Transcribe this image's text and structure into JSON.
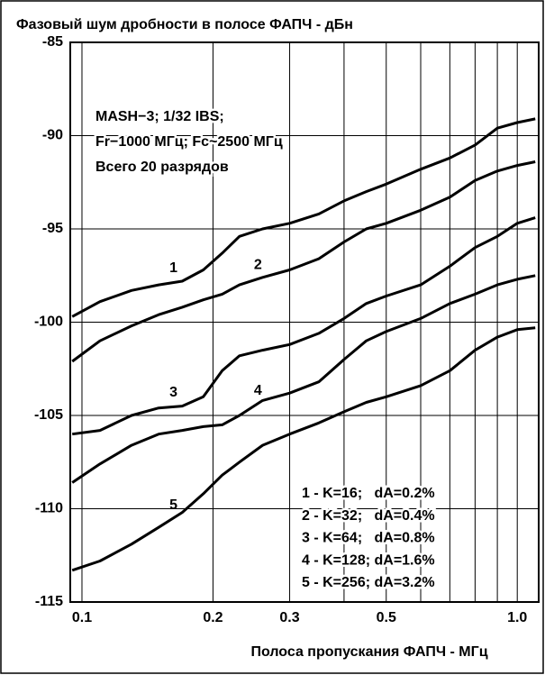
{
  "chart_data": {
    "type": "line",
    "title": "Фазовый шум дробности в полосе ФАПЧ - дБн",
    "x_label": "Полоса пропускания ФАПЧ - МГц",
    "x_log": true,
    "xlim": [
      0.094,
      1.12
    ],
    "ylim": [
      -115,
      -85
    ],
    "xticks": [
      0.1,
      0.2,
      0.3,
      0.5,
      {
        "value": 1,
        "label": "1.0"
      }
    ],
    "xgrid": [
      0.4,
      0.6,
      0.7,
      0.8,
      0.9
    ],
    "yticks": [
      -85,
      -90,
      -95,
      -100,
      -105,
      -110,
      -115
    ],
    "grid": true,
    "annotations": [
      "MASH−3; 1/32 IBS;",
      "Fr−1000 МГц; Fc~2500 МГц",
      "Всего 20 разрядов"
    ],
    "x": [
      0.095,
      0.11,
      0.13,
      0.15,
      0.17,
      0.19,
      0.21,
      0.23,
      0.26,
      0.3,
      0.35,
      0.4,
      0.45,
      0.5,
      0.6,
      0.7,
      0.8,
      0.9,
      1.0,
      1.1
    ],
    "series": [
      {
        "name": "1",
        "description": "1 - K=16;   dA=0.2%",
        "color": "#000000",
        "label_at": 0.16,
        "values": [
          -99.7,
          -98.9,
          -98.3,
          -98.0,
          -97.8,
          -97.2,
          -96.3,
          -95.4,
          -95.0,
          -94.7,
          -94.2,
          -93.5,
          -93.0,
          -92.6,
          -91.8,
          -91.2,
          -90.5,
          -89.6,
          -89.3,
          -89.1
        ]
      },
      {
        "name": "2",
        "description": "2 - K=32;   dA=0.4%",
        "color": "#000000",
        "label_at": 0.25,
        "values": [
          -102.1,
          -101.0,
          -100.2,
          -99.6,
          -99.2,
          -98.8,
          -98.5,
          -98.0,
          -97.6,
          -97.2,
          -96.6,
          -95.7,
          -95.0,
          -94.7,
          -94.0,
          -93.3,
          -92.4,
          -91.9,
          -91.6,
          -91.4
        ]
      },
      {
        "name": "3",
        "description": "3 - K=64;   dA=0.8%",
        "color": "#000000",
        "label_at": 0.16,
        "values": [
          -106.0,
          -105.8,
          -105.0,
          -104.6,
          -104.5,
          -104.0,
          -102.6,
          -101.8,
          -101.5,
          -101.2,
          -100.6,
          -99.8,
          -99.0,
          -98.6,
          -98.0,
          -97.0,
          -96.0,
          -95.4,
          -94.7,
          -94.4
        ]
      },
      {
        "name": "4",
        "description": "4 - K=128; dA=1.6%",
        "color": "#000000",
        "label_at": 0.25,
        "values": [
          -108.6,
          -107.6,
          -106.6,
          -106.0,
          -105.8,
          -105.6,
          -105.5,
          -105.0,
          -104.2,
          -103.8,
          -103.2,
          -102.0,
          -101.0,
          -100.5,
          -99.8,
          -99.0,
          -98.5,
          -98.0,
          -97.7,
          -97.5
        ]
      },
      {
        "name": "5",
        "description": "5 - K=256; dA=3.2%",
        "color": "#000000",
        "label_at": 0.16,
        "values": [
          -113.3,
          -112.8,
          -111.9,
          -111.0,
          -110.2,
          -109.2,
          -108.2,
          -107.5,
          -106.6,
          -106.0,
          -105.4,
          -104.8,
          -104.3,
          -104.0,
          -103.4,
          -102.6,
          -101.5,
          -100.8,
          -100.4,
          -100.3
        ]
      }
    ]
  }
}
